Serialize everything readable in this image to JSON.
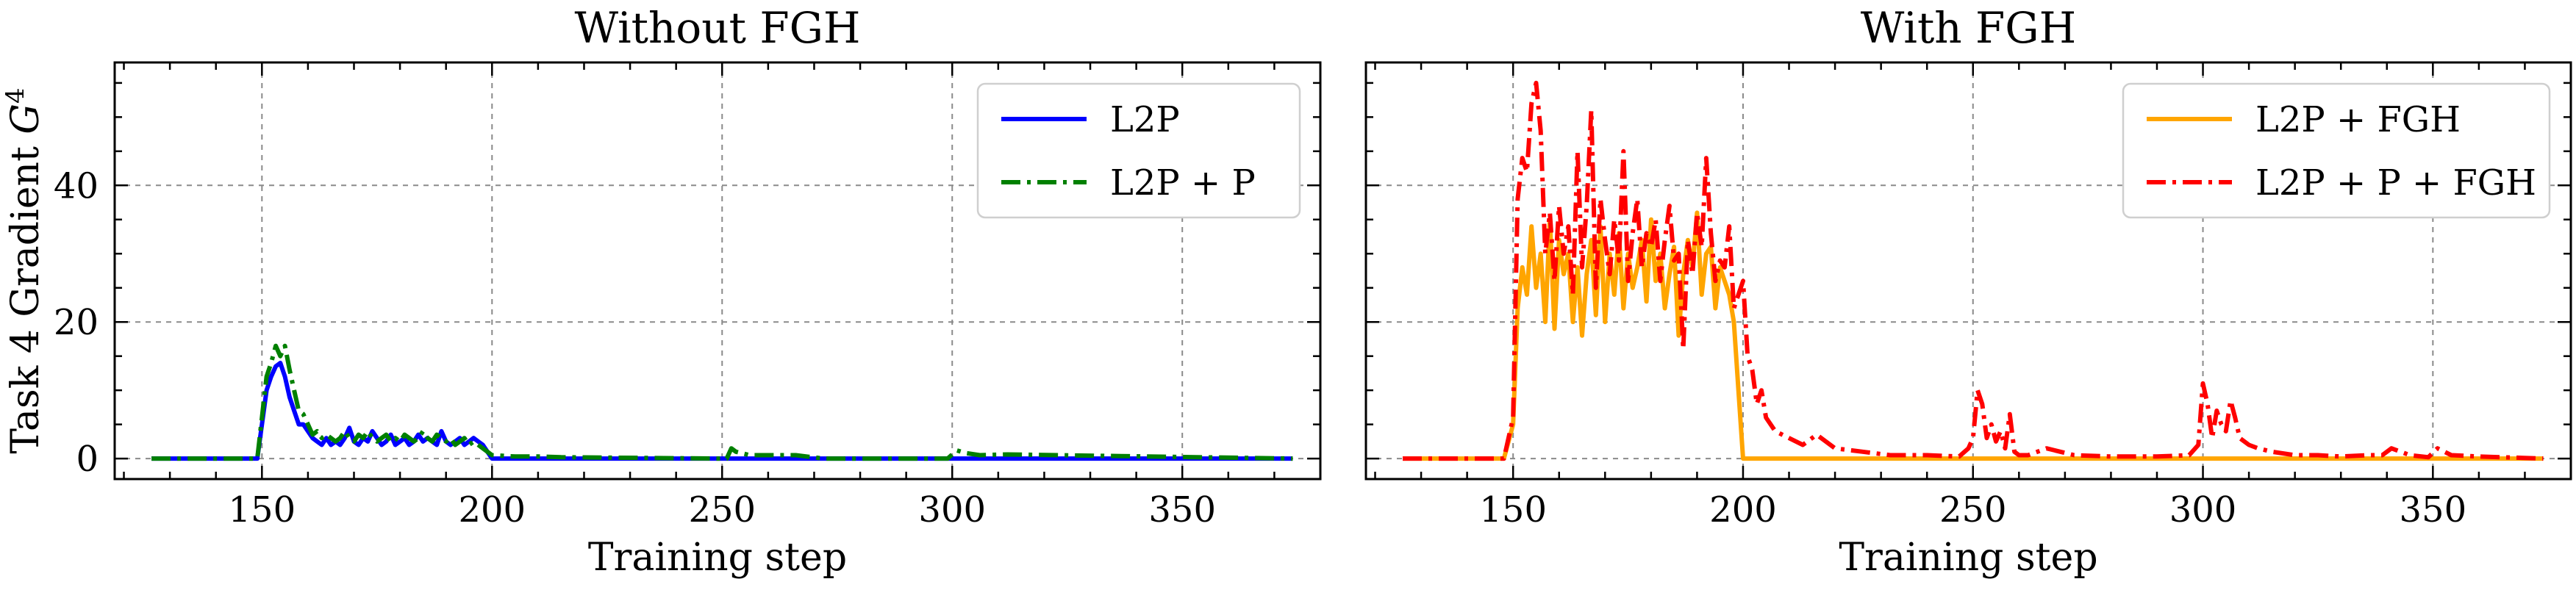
{
  "chart_data": [
    {
      "type": "line",
      "title": "Without FGH",
      "xlabel": "Training step",
      "ylabel": "Task 4 Gradient G^4",
      "xlim": [
        118,
        380
      ],
      "ylim": [
        -3,
        58
      ],
      "xticks": [
        150,
        200,
        250,
        300,
        350
      ],
      "yticks": [
        0,
        20,
        40
      ],
      "grid": true,
      "legend": "top-right",
      "series": [
        {
          "name": "L2P",
          "color": "#0000ff",
          "style": "solid",
          "x": [
            126,
            149,
            150,
            151,
            152,
            153,
            154,
            155,
            156,
            157,
            158,
            159,
            160,
            161,
            162,
            163,
            164,
            165,
            166,
            167,
            168,
            169,
            170,
            171,
            172,
            173,
            174,
            175,
            176,
            177,
            178,
            179,
            180,
            181,
            182,
            183,
            184,
            185,
            186,
            187,
            188,
            189,
            190,
            191,
            192,
            193,
            194,
            195,
            196,
            197,
            198,
            199,
            200,
            374
          ],
          "y": [
            0,
            0,
            5,
            10,
            12,
            13.5,
            14,
            12,
            9,
            7,
            5,
            5,
            4,
            3,
            2.5,
            2,
            3,
            2,
            2.5,
            2,
            3,
            4.5,
            2.5,
            2,
            3,
            2.5,
            4,
            3,
            2,
            2.5,
            3.5,
            2,
            2.5,
            3,
            2,
            2.5,
            3.5,
            2.5,
            3,
            2.5,
            2,
            4,
            2.5,
            2,
            2.5,
            3,
            2,
            2.5,
            3,
            2.5,
            2,
            1,
            0,
            0
          ]
        },
        {
          "name": "L2P + P",
          "color": "#008000",
          "style": "dashdot",
          "x": [
            126,
            149,
            150,
            151,
            152,
            153,
            154,
            155,
            156,
            157,
            158,
            159,
            160,
            161,
            162,
            163,
            164,
            165,
            166,
            167,
            168,
            169,
            170,
            171,
            172,
            173,
            174,
            175,
            176,
            177,
            178,
            179,
            180,
            181,
            182,
            183,
            184,
            185,
            186,
            187,
            188,
            189,
            190,
            191,
            192,
            193,
            194,
            195,
            196,
            197,
            198,
            199,
            200,
            205,
            210,
            215,
            249,
            251,
            252,
            253,
            256,
            266,
            272,
            299,
            301,
            303,
            306,
            312,
            374
          ],
          "y": [
            0,
            0,
            6,
            12,
            14,
            16.5,
            15,
            16.5,
            13,
            10,
            7,
            6.5,
            5,
            3.5,
            4,
            3,
            3.5,
            3,
            2.5,
            3,
            4,
            3,
            2.5,
            3.5,
            3,
            4,
            3,
            2.5,
            3,
            3.5,
            2.5,
            3,
            2.5,
            3.5,
            3,
            2.5,
            3,
            4,
            3,
            2.5,
            3.5,
            3,
            2.5,
            3,
            2,
            2.5,
            3,
            2,
            2.5,
            2,
            1.5,
            1,
            0.5,
            0.3,
            0.3,
            0.2,
            0,
            0,
            1.5,
            1,
            0.5,
            0.5,
            0,
            0,
            1.2,
            0.8,
            0.5,
            0.6,
            0
          ]
        }
      ]
    },
    {
      "type": "line",
      "title": "With FGH",
      "xlabel": "Training step",
      "ylabel": "",
      "xlim": [
        118,
        380
      ],
      "ylim": [
        -3,
        58
      ],
      "xticks": [
        150,
        200,
        250,
        300,
        350
      ],
      "yticks": [
        0,
        20,
        40
      ],
      "grid": true,
      "legend": "top-right",
      "series": [
        {
          "name": "L2P + FGH",
          "color": "#ffa500",
          "style": "solid",
          "x": [
            126,
            148,
            150,
            151,
            152,
            153,
            154,
            155,
            156,
            157,
            158,
            159,
            160,
            161,
            162,
            163,
            164,
            165,
            166,
            167,
            168,
            169,
            170,
            171,
            172,
            173,
            174,
            175,
            176,
            177,
            178,
            179,
            180,
            181,
            182,
            183,
            184,
            185,
            186,
            187,
            188,
            189,
            190,
            191,
            192,
            193,
            194,
            195,
            196,
            197,
            198,
            199,
            200,
            374
          ],
          "y": [
            0,
            0,
            5,
            22,
            28,
            24,
            34,
            25,
            30,
            20,
            35,
            19,
            32,
            27,
            30,
            20,
            28,
            18,
            27,
            32,
            21,
            34,
            20,
            30,
            24,
            33,
            22,
            30,
            25,
            28,
            32,
            23,
            35,
            26,
            30,
            22,
            27,
            31,
            18,
            27,
            32,
            28,
            36,
            24,
            30,
            31,
            22,
            28,
            26,
            24,
            20,
            10,
            0,
            0
          ]
        },
        {
          "name": "L2P + P + FGH",
          "color": "#ff0000",
          "style": "dashdot",
          "x": [
            126,
            148,
            150,
            151,
            152,
            153,
            154,
            155,
            156,
            157,
            158,
            159,
            160,
            161,
            162,
            163,
            164,
            165,
            166,
            167,
            168,
            169,
            170,
            171,
            172,
            173,
            174,
            175,
            176,
            177,
            178,
            179,
            180,
            181,
            182,
            183,
            184,
            185,
            186,
            187,
            188,
            189,
            190,
            191,
            192,
            193,
            194,
            195,
            196,
            197,
            198,
            199,
            200,
            201,
            202,
            203,
            204,
            205,
            207,
            210,
            213,
            216,
            220,
            226,
            232,
            240,
            247,
            249,
            250,
            251,
            252,
            253,
            254,
            255,
            256,
            257,
            258,
            259,
            260,
            262,
            266,
            272,
            280,
            290,
            297,
            299,
            300,
            301,
            302,
            303,
            304,
            305,
            306,
            307,
            308,
            310,
            312,
            315,
            320,
            325,
            330,
            336,
            339,
            341,
            345,
            349,
            351,
            354,
            360,
            374
          ],
          "y": [
            0,
            0,
            6,
            38,
            44,
            42,
            52,
            55,
            48,
            30,
            36,
            26,
            37,
            30,
            34,
            24,
            45,
            28,
            37,
            51,
            25,
            38,
            32,
            27,
            35,
            29,
            45,
            26,
            33,
            38,
            28,
            33,
            31,
            35,
            26,
            32,
            37,
            29,
            30,
            16,
            32,
            27,
            36,
            31,
            44,
            33,
            26,
            29,
            28,
            34,
            22,
            24,
            26,
            15,
            13,
            8,
            10,
            6,
            4,
            3,
            2,
            3.5,
            1.5,
            1,
            0.5,
            0.5,
            0.3,
            1.5,
            3,
            10,
            8,
            3,
            5,
            2.5,
            4,
            1.5,
            6.5,
            1,
            0.5,
            0.5,
            1.5,
            0.5,
            0.3,
            0.3,
            0.5,
            2,
            11,
            8,
            3,
            7,
            5,
            4,
            8.5,
            6,
            3,
            2,
            1.5,
            1,
            0.5,
            0.5,
            0.3,
            0.5,
            0.5,
            1.5,
            0.5,
            0.2,
            1.5,
            0.5,
            0.3,
            0
          ]
        }
      ]
    }
  ]
}
